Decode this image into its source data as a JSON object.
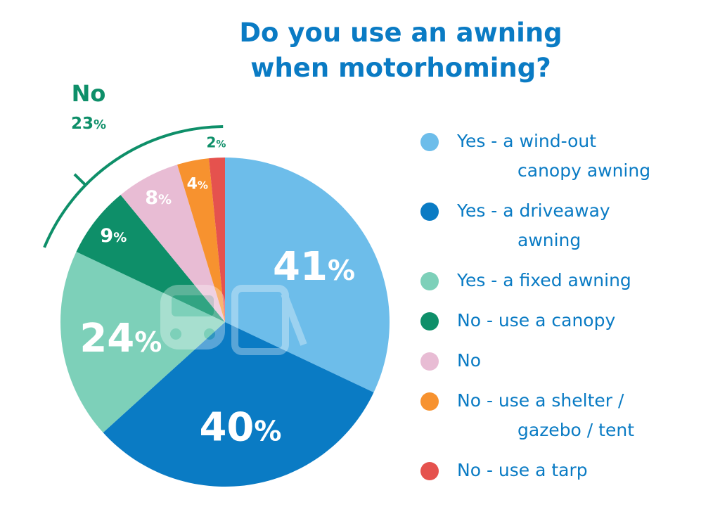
{
  "chart_data": {
    "type": "pie",
    "title": [
      "Do you use an awning",
      "when motorhoming?"
    ],
    "unit": "%",
    "slices": [
      {
        "label": "Yes - a wind-out canopy awning",
        "legend_lines": [
          "Yes - a wind-out",
          "canopy awning"
        ],
        "value": 41,
        "color": "#6dbdea"
      },
      {
        "label": "Yes - a driveaway awning",
        "legend_lines": [
          "Yes - a driveaway",
          "awning"
        ],
        "value": 40,
        "color": "#0a7bc4"
      },
      {
        "label": "Yes - a fixed awning",
        "legend_lines": [
          "Yes - a fixed awning"
        ],
        "value": 24,
        "color": "#7dd0b9"
      },
      {
        "label": "No - use a canopy",
        "legend_lines": [
          "No - use a canopy"
        ],
        "value": 9,
        "color": "#0e8f69"
      },
      {
        "label": "No",
        "legend_lines": [
          "No"
        ],
        "value": 8,
        "color": "#e8bcd4"
      },
      {
        "label": "No - use a shelter / gazebo / tent",
        "legend_lines": [
          "No - use a shelter /",
          "gazebo / tent"
        ],
        "value": 4,
        "color": "#f7922f"
      },
      {
        "label": "No - use a tarp",
        "legend_lines": [
          "No - use a tarp"
        ],
        "value": 2,
        "color": "#e5524e"
      }
    ],
    "group_annotation": {
      "label": "No",
      "value": 23,
      "color": "#0e8f69"
    },
    "legend_position": "right"
  }
}
